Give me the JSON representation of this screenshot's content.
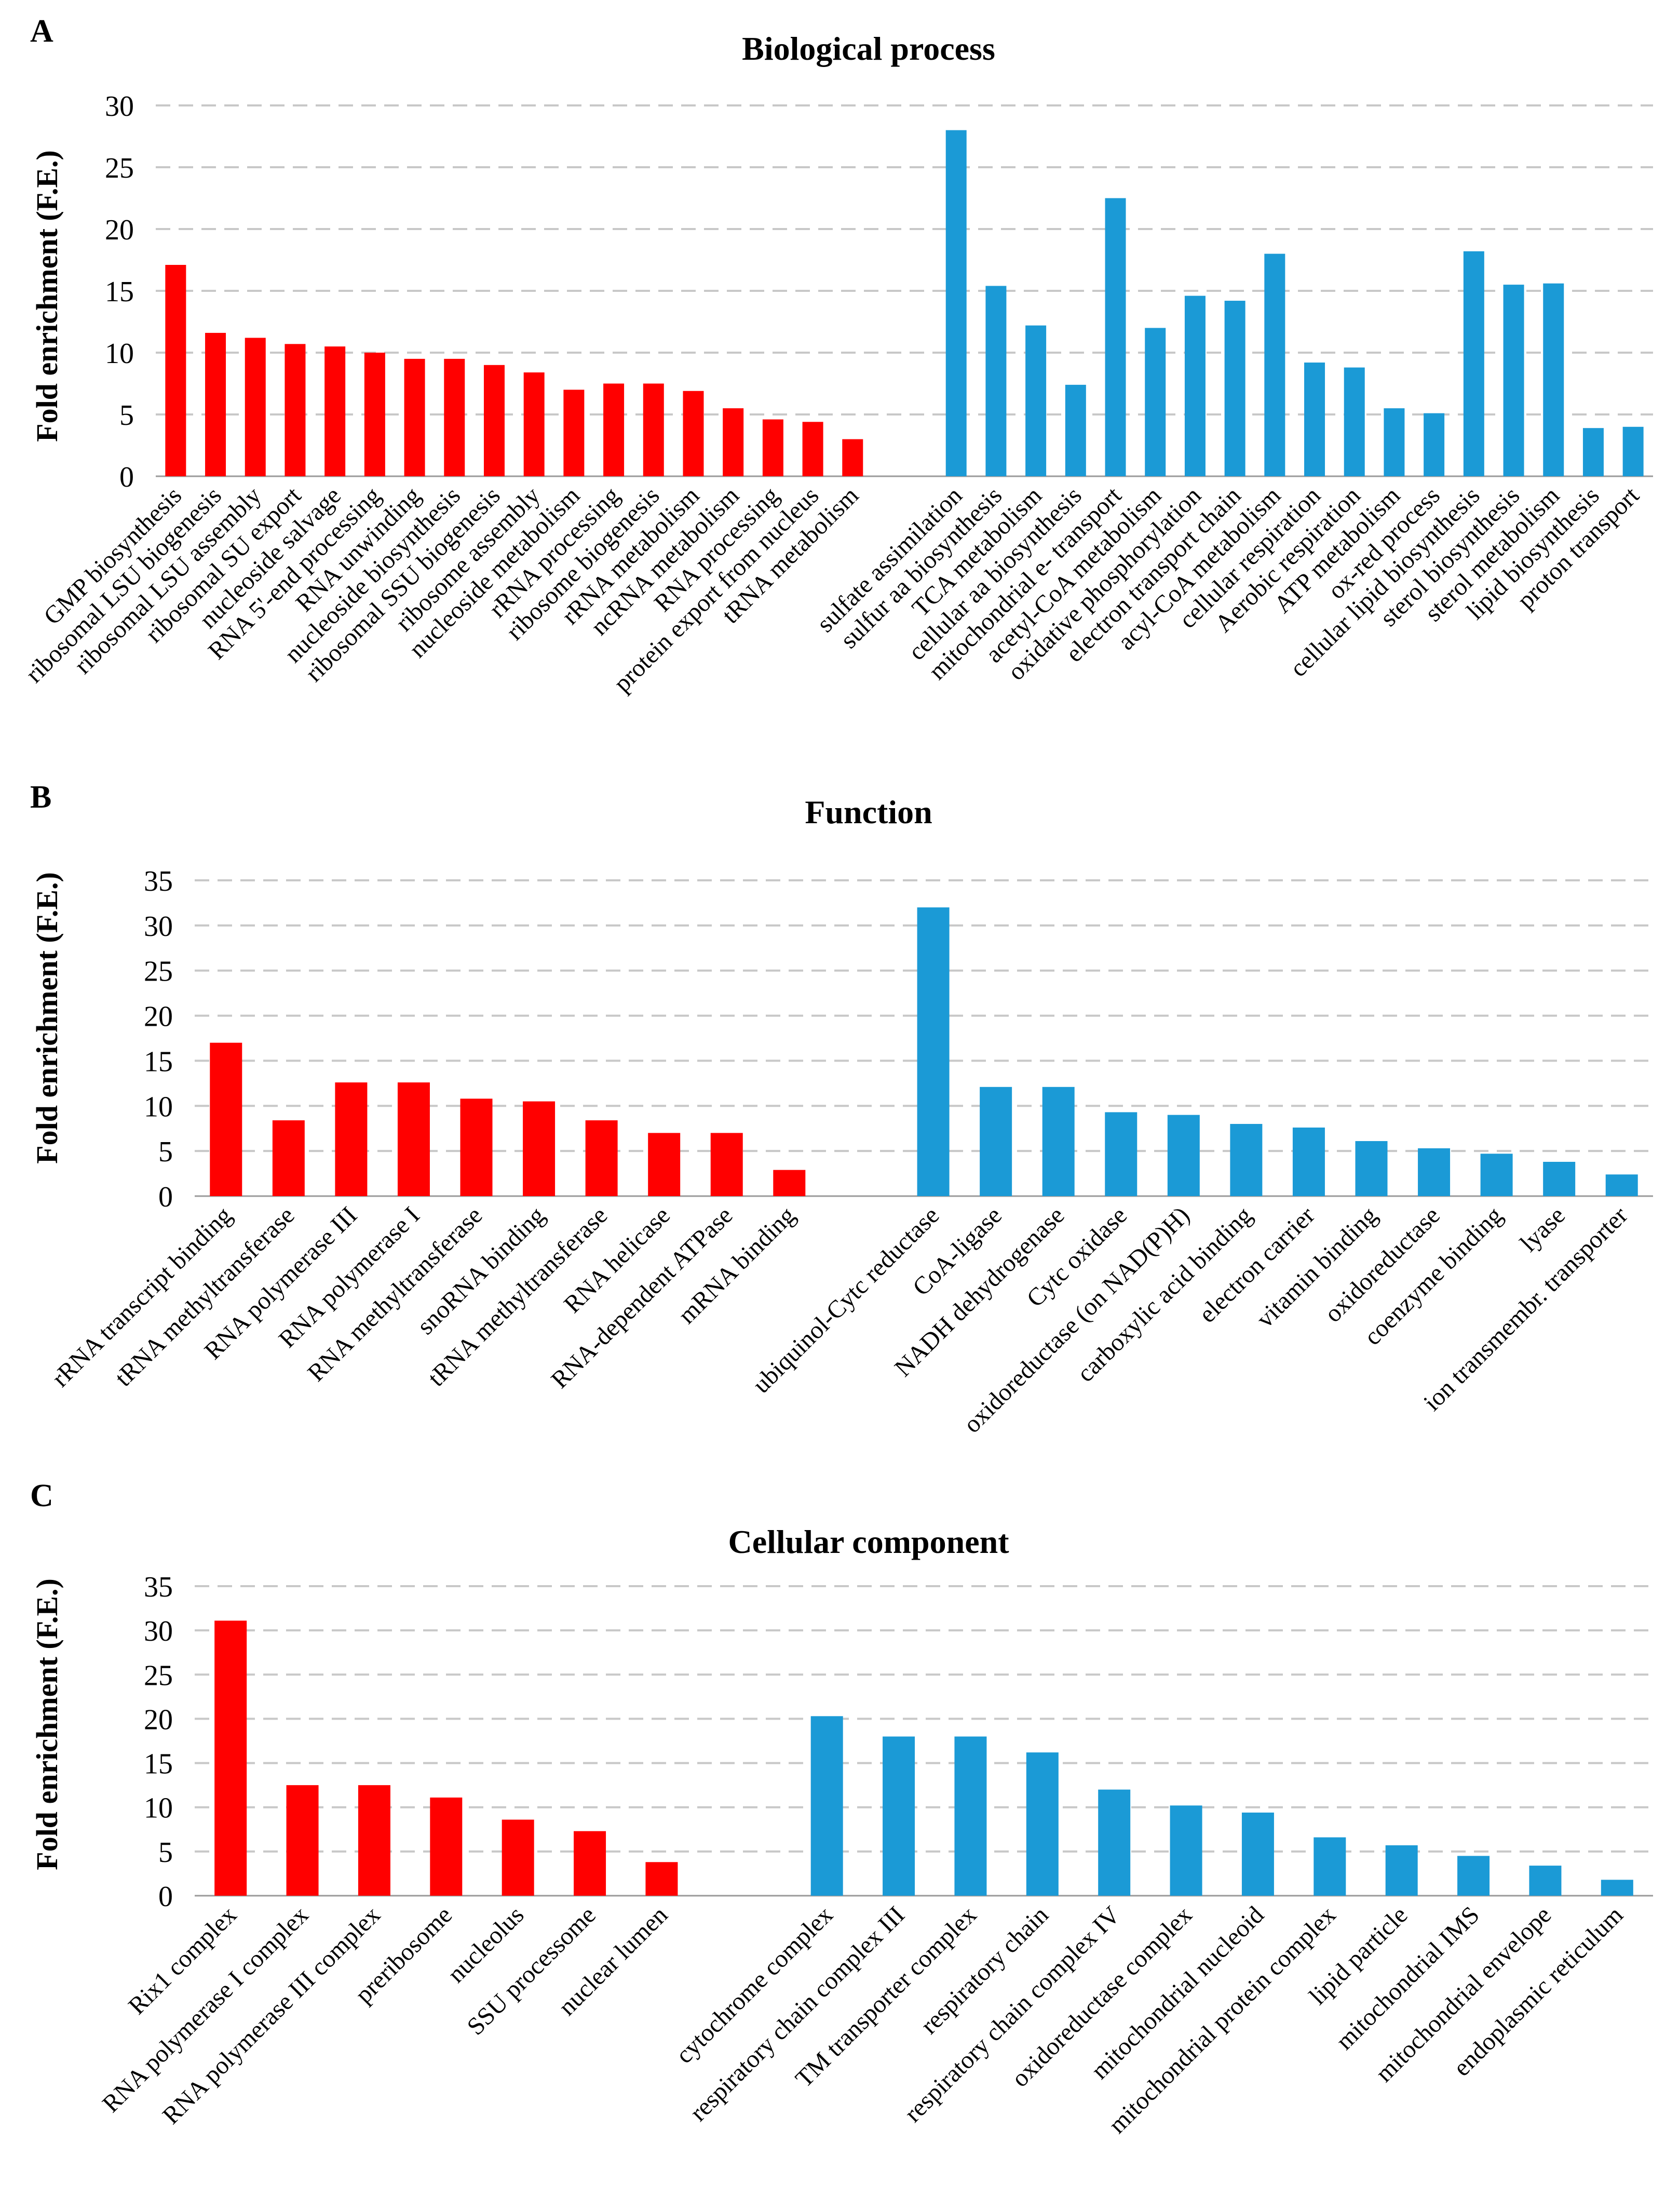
{
  "colors": {
    "group1": "#ff0000",
    "group2": "#1b9ad6"
  },
  "chart_data": [
    {
      "panel": "A",
      "type": "bar",
      "title": "Biological process",
      "ylabel": "Fold enrichment (F.E.)",
      "ylim": [
        0,
        30
      ],
      "yticks": [
        0,
        5,
        10,
        15,
        20,
        25,
        30
      ],
      "groups": [
        {
          "color": "group1",
          "categories": [
            "GMP biosynthesis",
            "ribosomal LSU biogenesis",
            "ribosomal LSU assembly",
            "ribosomal SU export",
            "nucleoside salvage",
            "RNA 5'-end processing",
            "RNA unwinding",
            "nucleoside biosynthesis",
            "ribosomal SSU biogenesis",
            "ribosome assembly",
            "nucleoside metabolism",
            "rRNA processing",
            "ribosome biogenesis",
            "rRNA metabolism",
            "ncRNA metabolism",
            "RNA processing",
            "protein export from nucleus",
            "tRNA metabolism"
          ],
          "values": [
            17.1,
            11.6,
            11.2,
            10.7,
            10.5,
            10.0,
            9.5,
            9.5,
            9.0,
            8.4,
            7.0,
            7.5,
            7.5,
            6.9,
            5.5,
            4.6,
            4.4,
            3.0
          ]
        },
        {
          "color": "group2",
          "categories": [
            "sulfate assimilation",
            "sulfur aa biosynthesis",
            "TCA metabolism",
            "cellular aa biosynthesis",
            "mitochondrial e- transport",
            "acetyl-CoA metabolism",
            "oxidative phosphorylation",
            "electron transport chain",
            "acyl-CoA metabolism",
            "cellular respiration",
            "Aerobic respiration",
            "ATP metabolism",
            "ox-red process",
            "cellular lipid biosynthesis",
            "sterol biosynthesis",
            "sterol metabolism",
            "lipid biosynthesis",
            "proton transport"
          ],
          "values": [
            28.0,
            15.4,
            12.2,
            7.4,
            22.5,
            12.0,
            14.6,
            14.2,
            18.0,
            9.2,
            8.8,
            5.5,
            5.1,
            18.2,
            15.5,
            15.6,
            3.9,
            4.0
          ]
        }
      ]
    },
    {
      "panel": "B",
      "type": "bar",
      "title": "Function",
      "ylabel": "Fold enrichment (F.E.)",
      "ylim": [
        0,
        35
      ],
      "yticks": [
        0,
        5,
        10,
        15,
        20,
        25,
        30,
        35
      ],
      "groups": [
        {
          "color": "group1",
          "categories": [
            "rRNA transcript binding",
            "tRNA methyltransferase",
            "RNA polymerase III",
            "RNA polymerase I",
            "RNA methyltransferase",
            "snoRNA binding",
            "tRNA methyltransferase",
            "RNA helicase",
            "RNA-dependent ATPase",
            "mRNA binding"
          ],
          "values": [
            17.0,
            8.4,
            12.6,
            12.6,
            10.8,
            10.5,
            8.4,
            7.0,
            7.0,
            2.9
          ]
        },
        {
          "color": "group2",
          "categories": [
            "ubiquinol-Cytc reductase",
            "CoA-ligase",
            "NADH dehydrogenase",
            "Cytc oxidase",
            "oxidoreductase (on NAD(P)H)",
            "carboxylic acid binding",
            "electron carrier",
            "vitamin binding",
            "oxidoreductase",
            "coenzyme binding",
            "lyase",
            "ion transmembr. transporter"
          ],
          "values": [
            32.0,
            12.1,
            12.1,
            9.3,
            9.0,
            8.0,
            7.6,
            6.1,
            5.3,
            4.7,
            3.8,
            2.4
          ]
        }
      ]
    },
    {
      "panel": "C",
      "type": "bar",
      "title": "Cellular component",
      "ylabel": "Fold enrichment (F.E.)",
      "ylim": [
        0,
        35
      ],
      "yticks": [
        0,
        5,
        10,
        15,
        20,
        25,
        30,
        35
      ],
      "groups": [
        {
          "color": "group1",
          "categories": [
            "Rix1 complex",
            "RNA polymerase I complex",
            "RNA polymerase III complex",
            "preribosome",
            "nucleolus",
            "SSU processome",
            "nuclear lumen"
          ],
          "values": [
            31.1,
            12.5,
            12.5,
            11.1,
            8.6,
            7.3,
            3.8
          ]
        },
        {
          "color": "group2",
          "categories": [
            "cytochrome complex",
            "respiratory chain complex III",
            "TM transporter complex",
            "respiratory chain",
            "respiratory chain complex IV",
            "oxidoreductase complex",
            "mitochondrial nucleoid",
            "mitochondrial protein complex",
            "lipid particle",
            "mitochondrial IMS",
            "mitochondrial envelope",
            "endoplasmic reticulum"
          ],
          "values": [
            20.3,
            18.0,
            18.0,
            16.2,
            12.0,
            10.2,
            9.4,
            6.6,
            5.7,
            4.5,
            3.4,
            1.8
          ]
        }
      ]
    }
  ]
}
